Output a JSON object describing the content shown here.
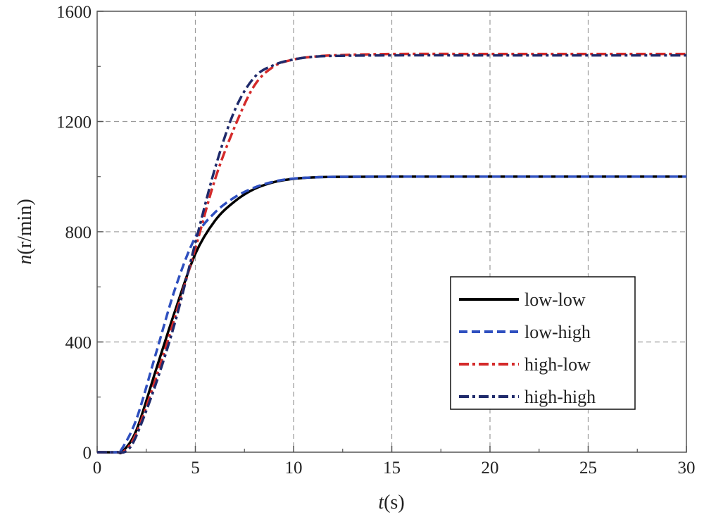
{
  "chart_data": {
    "type": "line",
    "title": "",
    "xlabel": {
      "var": "t",
      "unit": "(s)"
    },
    "ylabel": {
      "var": "n",
      "unit": "(r/min)"
    },
    "xlim": [
      0,
      30
    ],
    "ylim": [
      0,
      1600
    ],
    "xticks": [
      0,
      5,
      10,
      15,
      20,
      25,
      30
    ],
    "yticks": [
      0,
      400,
      800,
      1200,
      1600
    ],
    "grid": true,
    "legend_position": "lower-right",
    "series": [
      {
        "name": "low-low",
        "color": "#000000",
        "dash": "solid",
        "x": [
          0,
          1,
          1.3,
          2,
          3,
          4,
          5,
          6,
          7,
          8,
          9,
          10,
          11,
          12,
          15,
          20,
          25,
          30
        ],
        "y": [
          0,
          0,
          3,
          80,
          300,
          520,
          720,
          840,
          910,
          955,
          980,
          992,
          997,
          999,
          1000,
          1000,
          1000,
          1000
        ]
      },
      {
        "name": "low-high",
        "color": "#2e4fbf",
        "dash": "dash",
        "x": [
          0,
          1,
          1.2,
          2,
          3,
          4,
          5,
          6,
          7,
          8,
          9,
          10,
          11,
          12,
          15,
          20,
          25,
          30
        ],
        "y": [
          0,
          0,
          5,
          120,
          360,
          600,
          780,
          870,
          925,
          960,
          982,
          993,
          997,
          999,
          1000,
          1000,
          1000,
          1000
        ]
      },
      {
        "name": "high-low",
        "color": "#d42a2a",
        "dash": "dashdot",
        "x": [
          0,
          1,
          1.4,
          2,
          3,
          4,
          5,
          6,
          7,
          8,
          9,
          10,
          11,
          12,
          15,
          20,
          25,
          30
        ],
        "y": [
          0,
          0,
          5,
          70,
          270,
          500,
          740,
          990,
          1180,
          1330,
          1400,
          1425,
          1435,
          1440,
          1445,
          1445,
          1445,
          1445
        ]
      },
      {
        "name": "high-high",
        "color": "#1f2a6b",
        "dash": "dashdot",
        "x": [
          0,
          1,
          1.5,
          2,
          3,
          4,
          5,
          6,
          7,
          8,
          9,
          10,
          11,
          12,
          15,
          20,
          25,
          30
        ],
        "y": [
          0,
          0,
          5,
          60,
          250,
          480,
          760,
          1030,
          1240,
          1360,
          1405,
          1425,
          1435,
          1438,
          1440,
          1440,
          1440,
          1440
        ]
      }
    ]
  }
}
